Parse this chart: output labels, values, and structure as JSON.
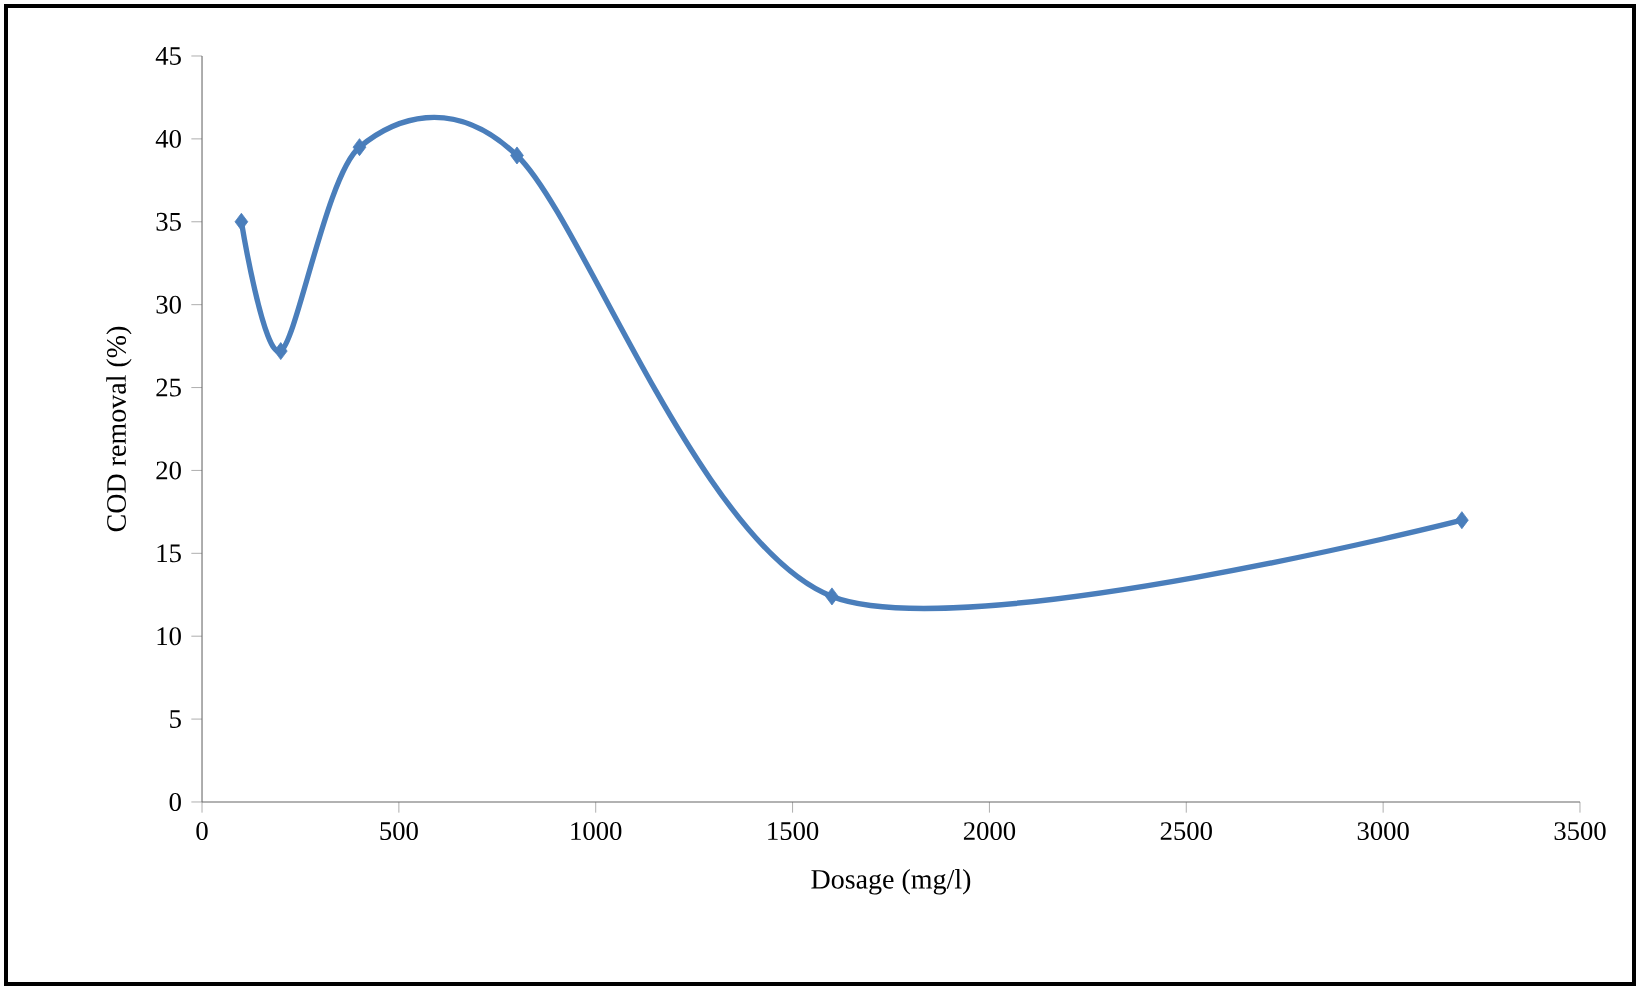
{
  "chart_data": {
    "type": "line",
    "xlabel": "Dosage (mg/l)",
    "ylabel": "COD removal (%)",
    "x": [
      100,
      200,
      400,
      800,
      1600,
      3200
    ],
    "series": [
      {
        "color": "#4a7ebb",
        "values": [
          35,
          27.2,
          39.5,
          39,
          12.4,
          17
        ]
      }
    ],
    "xlim": [
      0,
      3500
    ],
    "ylim": [
      0,
      45
    ],
    "xticks": [
      0,
      500,
      1000,
      1500,
      2000,
      2500,
      3000,
      3500
    ],
    "yticks": [
      0,
      5,
      10,
      15,
      20,
      25,
      30,
      35,
      40,
      45
    ],
    "marker": "diamond",
    "line_style": "solid"
  }
}
